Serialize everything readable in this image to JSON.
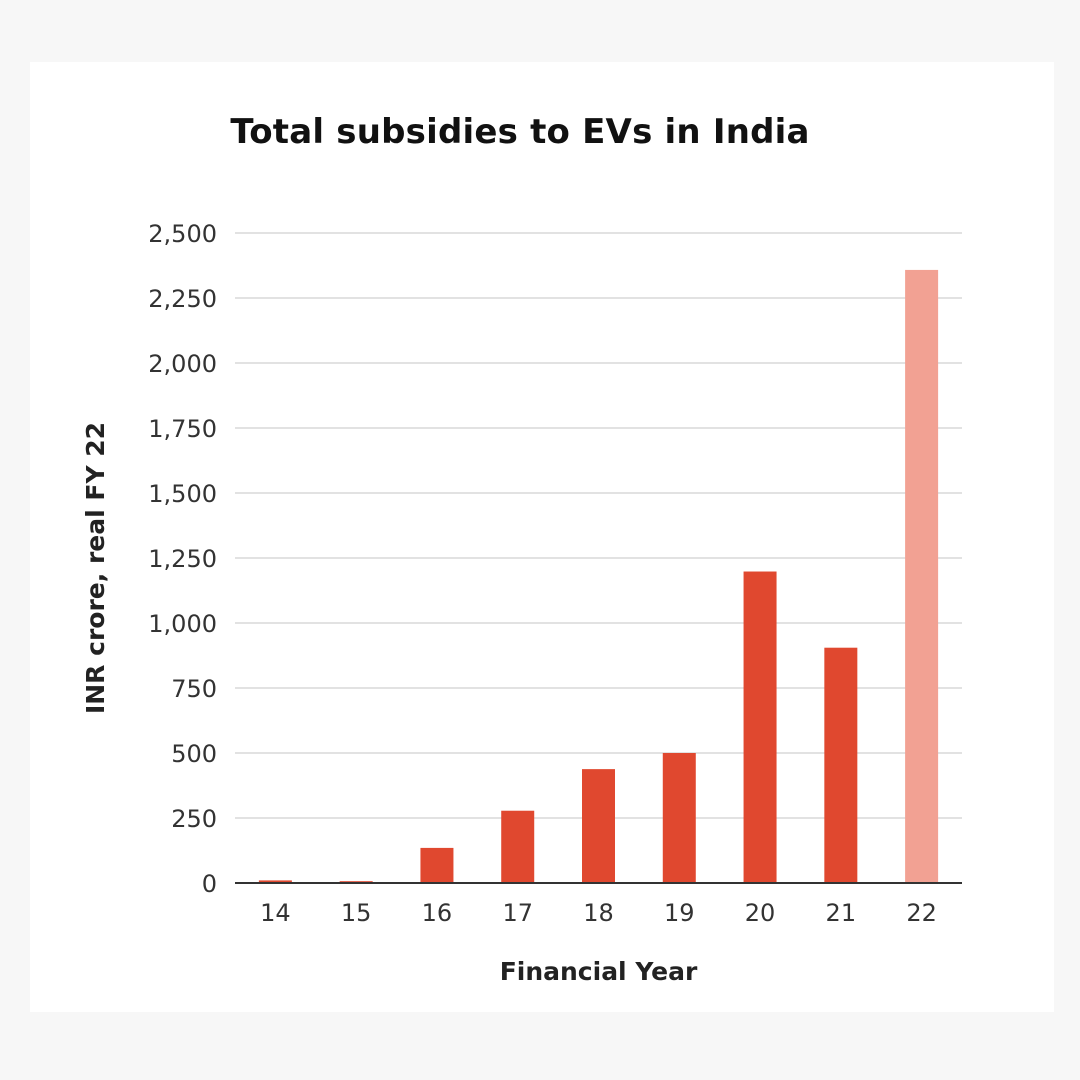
{
  "chart_data": {
    "type": "bar",
    "title": "Total subsidies to EVs in India",
    "xlabel": "Financial Year",
    "ylabel": "INR crore, real FY 22",
    "categories": [
      "14",
      "15",
      "16",
      "17",
      "18",
      "19",
      "20",
      "21",
      "22"
    ],
    "values": [
      10,
      7,
      135,
      278,
      438,
      500,
      1198,
      905,
      2358
    ],
    "ylim": [
      0,
      2500
    ],
    "yticks": [
      0,
      250,
      500,
      750,
      1000,
      1250,
      1500,
      1750,
      2000,
      2250,
      2500
    ],
    "ytick_labels": [
      "0",
      "250",
      "500",
      "750",
      "1,000",
      "1,250",
      "1,500",
      "1,750",
      "2,000",
      "2,250",
      "2,500"
    ],
    "grid": true,
    "colors": {
      "bar": "#e0482f",
      "bar_highlight": "#f2a193",
      "grid": "#d9d9d9",
      "axis": "#333333"
    },
    "highlight_categories": [
      "22"
    ]
  }
}
